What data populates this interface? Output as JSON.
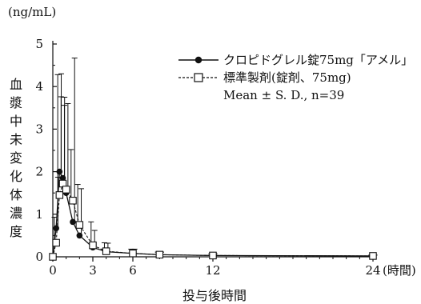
{
  "chart_data": {
    "type": "line",
    "unit_label": "(ng/mL)",
    "ylabel": "血漿中未変化体濃度",
    "xlabel": "投与後時間",
    "x_unit": "(時間)",
    "xlim": [
      0,
      24
    ],
    "ylim": [
      0,
      5
    ],
    "x_ticks": [
      0,
      3,
      6,
      12,
      24
    ],
    "y_ticks": [
      0,
      1,
      2,
      3,
      4,
      5
    ],
    "note": "Mean ± S. D.,  n=39",
    "series": [
      {
        "name": "クロピドグレル錠75mg「アメル」",
        "marker": "filled-circle",
        "line": "solid",
        "x": [
          0,
          0.25,
          0.5,
          0.75,
          1,
          1.5,
          2,
          3,
          4,
          6,
          8,
          12,
          24
        ],
        "y": [
          0,
          0.67,
          2.0,
          1.85,
          1.5,
          0.82,
          0.5,
          0.22,
          0.12,
          0.08,
          0.05,
          0.03,
          0.02
        ],
        "sd": [
          0,
          1.2,
          2.3,
          1.9,
          2.1,
          3.85,
          1.1,
          0.4,
          0.2,
          0.1,
          0.06,
          0.04,
          0.02
        ]
      },
      {
        "name": "標準製剤(錠剤、75mg)",
        "marker": "open-square",
        "line": "dashed",
        "x": [
          0,
          0.25,
          0.5,
          0.75,
          1,
          1.5,
          2,
          3,
          4,
          6,
          8,
          12,
          24
        ],
        "y": [
          0,
          0.33,
          1.45,
          1.72,
          1.58,
          1.32,
          0.75,
          0.27,
          0.13,
          0.08,
          0.05,
          0.03,
          0.02
        ],
        "sd": [
          0,
          0.6,
          2.83,
          2.04,
          1.98,
          1.2,
          0.95,
          0.55,
          0.2,
          0.1,
          0.06,
          0.04,
          0.02
        ]
      }
    ]
  }
}
